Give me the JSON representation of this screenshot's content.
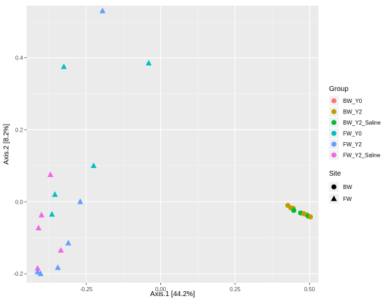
{
  "chart_data": {
    "type": "scatter",
    "xlabel": "Axis.1   [44.2%]",
    "ylabel": "Axis.2   [8.2%]",
    "xlim": [
      -0.45,
      0.53
    ],
    "ylim": [
      -0.225,
      0.545
    ],
    "x_ticks": [
      -0.25,
      0.0,
      0.25,
      0.5
    ],
    "x_tick_labels": [
      "-0.25",
      "0.00",
      "0.25",
      "0.50"
    ],
    "y_ticks": [
      -0.2,
      0.0,
      0.2,
      0.4
    ],
    "y_tick_labels": [
      "-0.2",
      "0.0",
      "0.2",
      "0.4"
    ],
    "grid": true,
    "panel_background": "#ebebeb",
    "legend_position": "right",
    "color_legend": {
      "title": "Group",
      "entries": [
        {
          "label": "BW_Y0",
          "color": "#F8766D"
        },
        {
          "label": "BW_Y2",
          "color": "#B79F00"
        },
        {
          "label": "BW_Y2_Saline",
          "color": "#00BA38"
        },
        {
          "label": "FW_Y0",
          "color": "#00BFC4"
        },
        {
          "label": "FW_Y2",
          "color": "#619CFF"
        },
        {
          "label": "FW_Y2_Saline",
          "color": "#F564E3"
        }
      ]
    },
    "shape_legend": {
      "title": "Site",
      "entries": [
        {
          "label": "BW",
          "shape": "circle"
        },
        {
          "label": "FW",
          "shape": "triangle"
        }
      ]
    },
    "points": [
      {
        "x": -0.195,
        "y": 0.53,
        "group": "FW_Y2",
        "site": "FW"
      },
      {
        "x": -0.325,
        "y": 0.375,
        "group": "FW_Y0",
        "site": "FW"
      },
      {
        "x": -0.04,
        "y": 0.385,
        "group": "FW_Y0",
        "site": "FW"
      },
      {
        "x": -0.225,
        "y": 0.1,
        "group": "FW_Y0",
        "site": "FW"
      },
      {
        "x": -0.37,
        "y": 0.075,
        "group": "FW_Y2_Saline",
        "site": "FW"
      },
      {
        "x": -0.355,
        "y": 0.02,
        "group": "FW_Y0",
        "site": "FW"
      },
      {
        "x": -0.27,
        "y": 0.0,
        "group": "FW_Y2",
        "site": "FW"
      },
      {
        "x": -0.365,
        "y": -0.035,
        "group": "FW_Y0",
        "site": "FW"
      },
      {
        "x": -0.4,
        "y": -0.037,
        "group": "FW_Y2_Saline",
        "site": "FW"
      },
      {
        "x": -0.41,
        "y": -0.073,
        "group": "FW_Y2_Saline",
        "site": "FW"
      },
      {
        "x": -0.31,
        "y": -0.115,
        "group": "FW_Y2",
        "site": "FW"
      },
      {
        "x": -0.335,
        "y": -0.135,
        "group": "FW_Y2_Saline",
        "site": "FW"
      },
      {
        "x": -0.345,
        "y": -0.183,
        "group": "FW_Y2",
        "site": "FW"
      },
      {
        "x": -0.413,
        "y": -0.185,
        "group": "FW_Y2_Saline",
        "site": "FW"
      },
      {
        "x": -0.413,
        "y": -0.195,
        "group": "FW_Y2",
        "site": "FW"
      },
      {
        "x": -0.403,
        "y": -0.2,
        "group": "FW_Y2",
        "site": "FW"
      },
      {
        "x": 0.427,
        "y": -0.01,
        "group": "BW_Y2",
        "site": "BW"
      },
      {
        "x": 0.437,
        "y": -0.017,
        "group": "BW_Y2",
        "site": "BW"
      },
      {
        "x": 0.445,
        "y": -0.018,
        "group": "BW_Y2",
        "site": "BW"
      },
      {
        "x": 0.447,
        "y": -0.024,
        "group": "BW_Y2_Saline",
        "site": "BW"
      },
      {
        "x": 0.47,
        "y": -0.031,
        "group": "BW_Y2_Saline",
        "site": "BW"
      },
      {
        "x": 0.48,
        "y": -0.033,
        "group": "BW_Y2",
        "site": "BW"
      },
      {
        "x": 0.49,
        "y": -0.036,
        "group": "BW_Y2",
        "site": "BW"
      },
      {
        "x": 0.496,
        "y": -0.04,
        "group": "BW_Y2_Saline",
        "site": "BW"
      },
      {
        "x": 0.503,
        "y": -0.042,
        "group": "BW_Y2",
        "site": "BW"
      }
    ]
  }
}
